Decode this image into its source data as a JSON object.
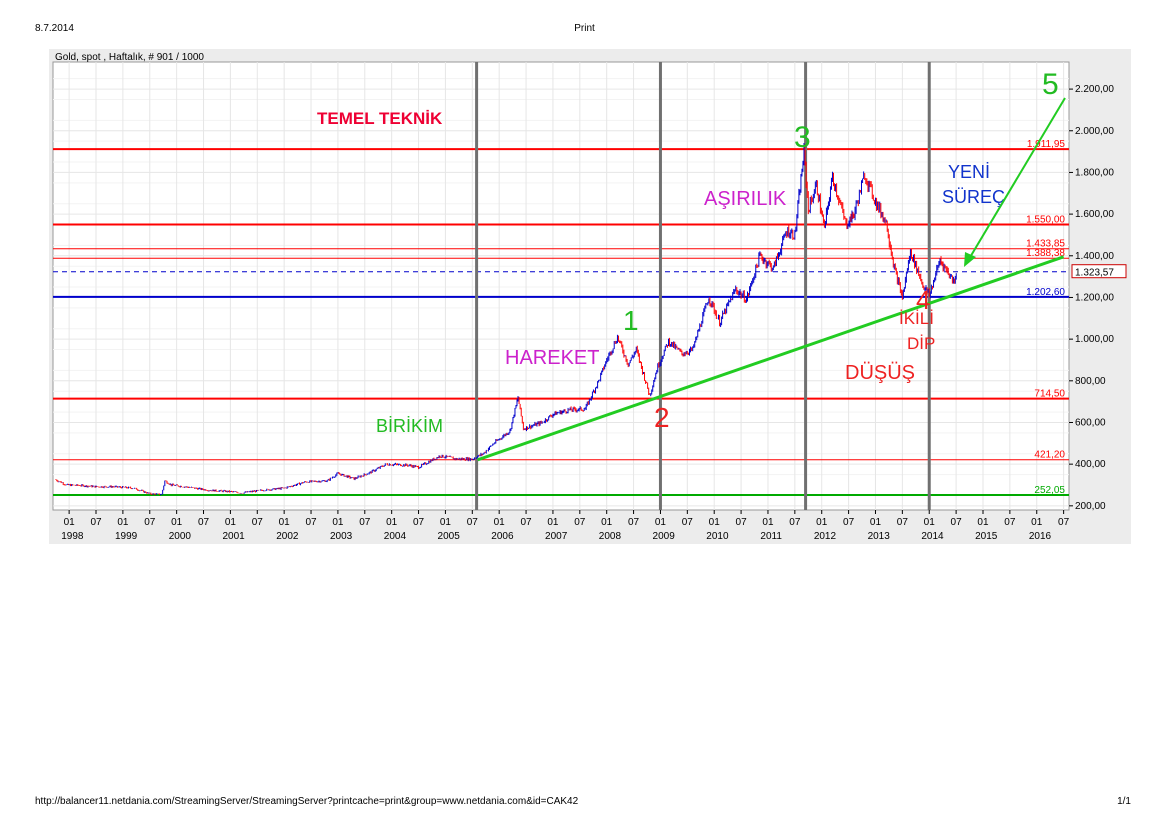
{
  "page": {
    "date": "8.7.2014",
    "title": "Print",
    "url": "http://balancer11.netdania.com/StreamingServer/StreamingServer?printcache=print&group=www.netdania.com&id=CAK42",
    "page_number": "1/1"
  },
  "chart_data": {
    "type": "line",
    "title": "Gold, spot , Haftalık, # 901 / 1000",
    "ylim": [
      180,
      2330
    ],
    "y_ticks": [
      "200,00",
      "400,00",
      "600,00",
      "800,00",
      "1.000,00",
      "1.200,00",
      "1.400,00",
      "1.600,00",
      "1.800,00",
      "2.000,00",
      "2.200,00"
    ],
    "y_tick_values": [
      200,
      400,
      600,
      800,
      1000,
      1200,
      1400,
      1600,
      1800,
      2000,
      2200
    ],
    "x_month_ticks": [
      "07",
      "01"
    ],
    "x_year_labels": [
      "1998",
      "1999",
      "2000",
      "2001",
      "2002",
      "2003",
      "2004",
      "2005",
      "2006",
      "2007",
      "2008",
      "2009",
      "2010",
      "2011",
      "2012",
      "2013",
      "2014",
      "2015",
      "2016"
    ],
    "xlim": [
      1997.7,
      2016.6
    ],
    "grid": true,
    "price_series": [
      {
        "x": 1997.75,
        "y": 325
      },
      {
        "x": 1997.95,
        "y": 300
      },
      {
        "x": 1998.2,
        "y": 298
      },
      {
        "x": 1998.5,
        "y": 292
      },
      {
        "x": 1998.8,
        "y": 292
      },
      {
        "x": 1999.2,
        "y": 285
      },
      {
        "x": 1999.5,
        "y": 258
      },
      {
        "x": 1999.72,
        "y": 255
      },
      {
        "x": 1999.78,
        "y": 320
      },
      {
        "x": 1999.9,
        "y": 300
      },
      {
        "x": 2000.2,
        "y": 290
      },
      {
        "x": 2000.6,
        "y": 275
      },
      {
        "x": 2001.0,
        "y": 268
      },
      {
        "x": 2001.2,
        "y": 262
      },
      {
        "x": 2001.6,
        "y": 275
      },
      {
        "x": 2002.0,
        "y": 285
      },
      {
        "x": 2002.4,
        "y": 315
      },
      {
        "x": 2002.8,
        "y": 320
      },
      {
        "x": 2003.0,
        "y": 355
      },
      {
        "x": 2003.3,
        "y": 330
      },
      {
        "x": 2003.6,
        "y": 360
      },
      {
        "x": 2003.9,
        "y": 400
      },
      {
        "x": 2004.3,
        "y": 395
      },
      {
        "x": 2004.5,
        "y": 385
      },
      {
        "x": 2004.9,
        "y": 440
      },
      {
        "x": 2005.2,
        "y": 425
      },
      {
        "x": 2005.5,
        "y": 425
      },
      {
        "x": 2005.7,
        "y": 450
      },
      {
        "x": 2005.9,
        "y": 500
      },
      {
        "x": 2006.2,
        "y": 560
      },
      {
        "x": 2006.35,
        "y": 720
      },
      {
        "x": 2006.45,
        "y": 570
      },
      {
        "x": 2006.8,
        "y": 600
      },
      {
        "x": 2007.0,
        "y": 640
      },
      {
        "x": 2007.3,
        "y": 660
      },
      {
        "x": 2007.6,
        "y": 665
      },
      {
        "x": 2007.85,
        "y": 800
      },
      {
        "x": 2008.0,
        "y": 900
      },
      {
        "x": 2008.2,
        "y": 1010
      },
      {
        "x": 2008.4,
        "y": 880
      },
      {
        "x": 2008.55,
        "y": 950
      },
      {
        "x": 2008.8,
        "y": 730
      },
      {
        "x": 2008.95,
        "y": 870
      },
      {
        "x": 2009.15,
        "y": 990
      },
      {
        "x": 2009.4,
        "y": 930
      },
      {
        "x": 2009.6,
        "y": 950
      },
      {
        "x": 2009.9,
        "y": 1200
      },
      {
        "x": 2010.1,
        "y": 1080
      },
      {
        "x": 2010.4,
        "y": 1240
      },
      {
        "x": 2010.6,
        "y": 1190
      },
      {
        "x": 2010.85,
        "y": 1400
      },
      {
        "x": 2011.1,
        "y": 1340
      },
      {
        "x": 2011.35,
        "y": 1520
      },
      {
        "x": 2011.5,
        "y": 1500
      },
      {
        "x": 2011.67,
        "y": 1900
      },
      {
        "x": 2011.75,
        "y": 1620
      },
      {
        "x": 2011.9,
        "y": 1740
      },
      {
        "x": 2012.05,
        "y": 1530
      },
      {
        "x": 2012.2,
        "y": 1780
      },
      {
        "x": 2012.45,
        "y": 1550
      },
      {
        "x": 2012.6,
        "y": 1600
      },
      {
        "x": 2012.8,
        "y": 1790
      },
      {
        "x": 2013.0,
        "y": 1660
      },
      {
        "x": 2013.2,
        "y": 1560
      },
      {
        "x": 2013.35,
        "y": 1340
      },
      {
        "x": 2013.5,
        "y": 1200
      },
      {
        "x": 2013.65,
        "y": 1420
      },
      {
        "x": 2013.9,
        "y": 1250
      },
      {
        "x": 2014.0,
        "y": 1210
      },
      {
        "x": 2014.2,
        "y": 1380
      },
      {
        "x": 2014.45,
        "y": 1280
      },
      {
        "x": 2014.52,
        "y": 1324
      }
    ],
    "horizontal_levels": [
      {
        "value": 1911.95,
        "label": "1.911,95",
        "color": "#ff0000"
      },
      {
        "value": 1550.0,
        "label": "1.550,00",
        "color": "#ff0000"
      },
      {
        "value": 1433.85,
        "label": "1.433,85",
        "color": "#ff0000"
      },
      {
        "value": 1388.38,
        "label": "1.388,38",
        "color": "#ff0000"
      },
      {
        "value": 1202.6,
        "label": "1.202,60",
        "color": "#0000cc"
      },
      {
        "value": 714.5,
        "label": "714,50",
        "color": "#ff0000"
      },
      {
        "value": 421.2,
        "label": "421,20",
        "color": "#ff0000"
      },
      {
        "value": 252.05,
        "label": "252,05",
        "color": "#00aa00"
      }
    ],
    "current_price": {
      "value": 1323.57,
      "label": "1.323,57"
    },
    "vertical_dividers": [
      2005.58,
      2009.0,
      2011.7,
      2014.0
    ],
    "trendline": {
      "from": {
        "x": 2005.6,
        "y": 421
      },
      "to": {
        "x": 2016.5,
        "y": 1395
      }
    },
    "annotations": {
      "temel_teknik": "TEMEL TEKNİK",
      "birikim": "BİRİKİM",
      "hareket": "HAREKET",
      "asirilik": "AŞIRILIK",
      "dusus": "DÜŞÜŞ",
      "ikili": "İKİLİ",
      "dip": "DİP",
      "yeni": "YENİ",
      "surec": "SÜREÇ",
      "w1": "1",
      "w2": "2",
      "w3": "3",
      "w4": "4",
      "w5": "5"
    },
    "colors": {
      "up": "#0000cc",
      "down": "#ff0000",
      "trend": "#22cc22",
      "divider": "#707070"
    }
  }
}
